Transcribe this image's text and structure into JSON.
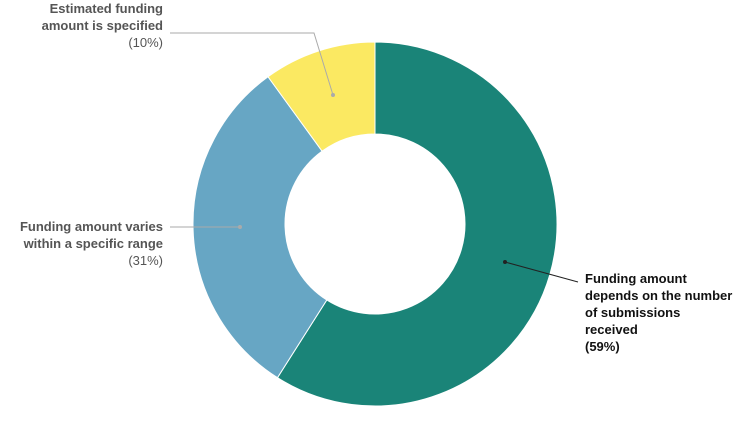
{
  "chart_data": {
    "type": "donut",
    "categories": [
      "Funding amount depends on the number of submissions received",
      "Funding amount varies within a specific range",
      "Estimated funding amount is specified"
    ],
    "values": [
      59,
      31,
      10
    ],
    "value_labels": [
      "(59%)",
      "(31%)",
      "(10%)"
    ],
    "colors": [
      "#1a8478",
      "#67a6c4",
      "#fbe962"
    ]
  }
}
